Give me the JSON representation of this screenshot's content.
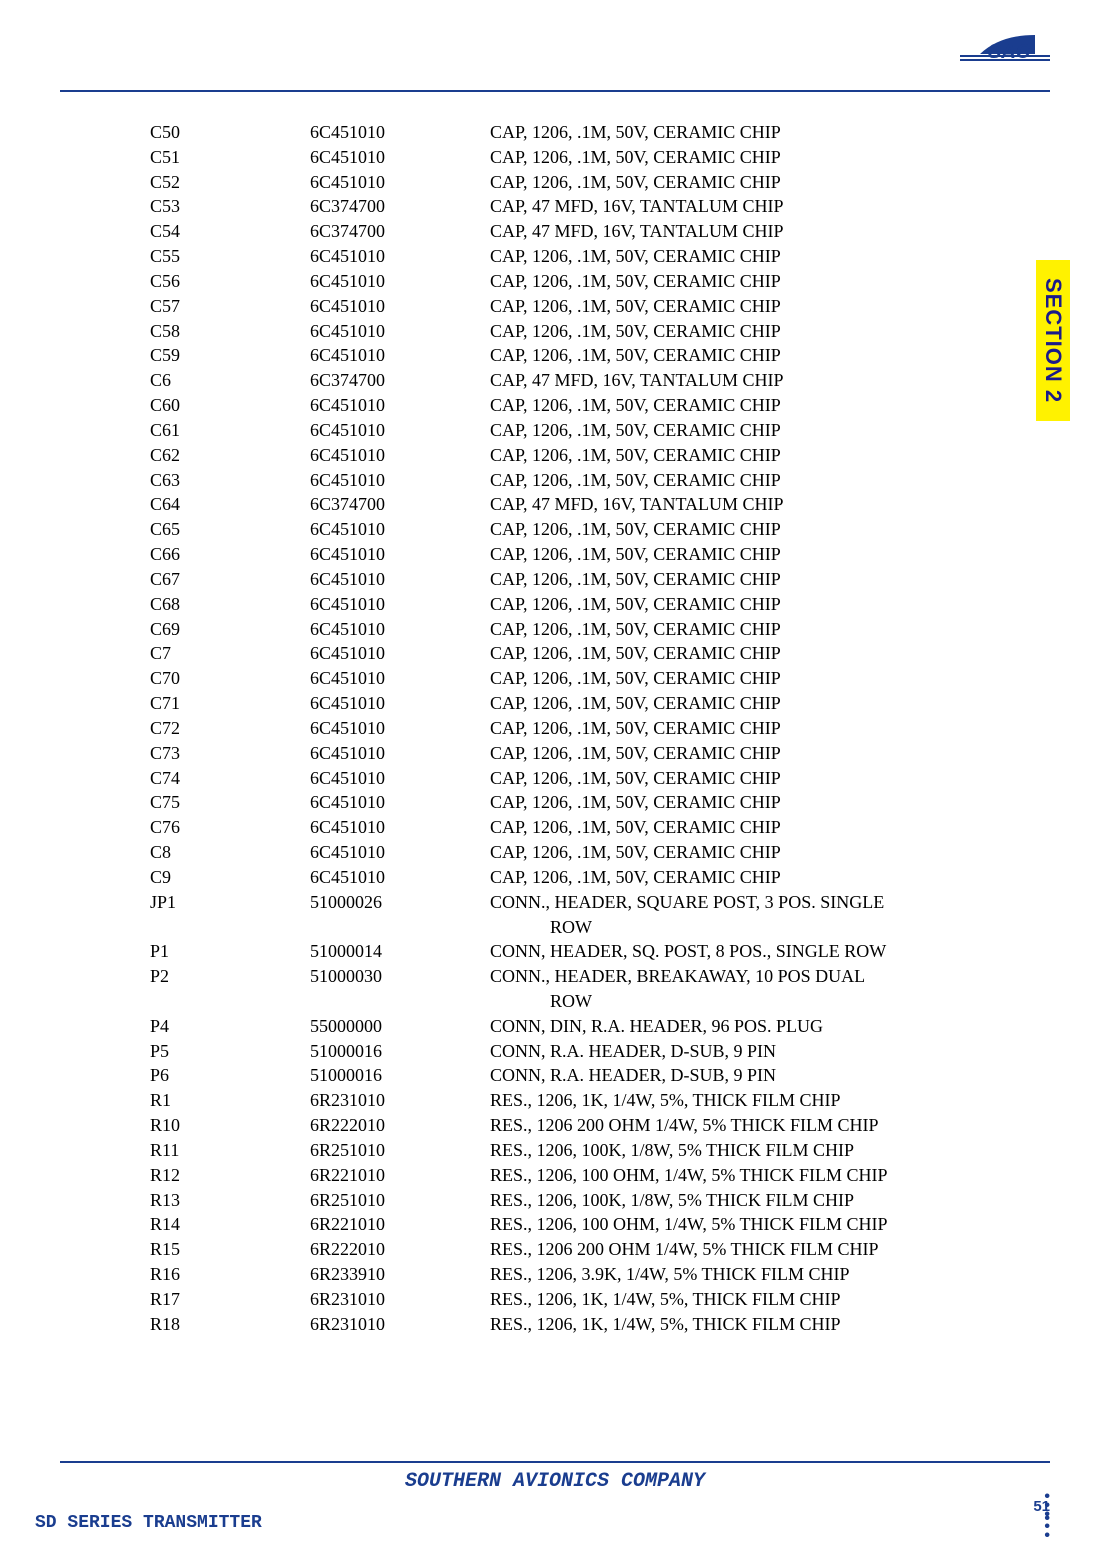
{
  "section_tab": "SECTION 2",
  "footer_center": "SOUTHERN AVIONICS COMPANY",
  "footer_left": "SD SERIES TRANSMITTER",
  "page_number": "51",
  "rows": [
    {
      "ref": "C50",
      "part": "6C451010",
      "desc": "CAP, 1206, .1M, 50V, CERAMIC CHIP"
    },
    {
      "ref": "C51",
      "part": "6C451010",
      "desc": "CAP, 1206, .1M, 50V, CERAMIC CHIP"
    },
    {
      "ref": "C52",
      "part": "6C451010",
      "desc": "CAP, 1206, .1M, 50V, CERAMIC CHIP"
    },
    {
      "ref": "C53",
      "part": "6C374700",
      "desc": "CAP, 47 MFD, 16V, TANTALUM CHIP"
    },
    {
      "ref": "C54",
      "part": "6C374700",
      "desc": "CAP, 47 MFD, 16V, TANTALUM CHIP"
    },
    {
      "ref": "C55",
      "part": "6C451010",
      "desc": "CAP, 1206, .1M, 50V, CERAMIC CHIP"
    },
    {
      "ref": "C56",
      "part": "6C451010",
      "desc": "CAP, 1206, .1M, 50V, CERAMIC CHIP"
    },
    {
      "ref": "C57",
      "part": "6C451010",
      "desc": "CAP, 1206, .1M, 50V, CERAMIC CHIP"
    },
    {
      "ref": "C58",
      "part": "6C451010",
      "desc": "CAP, 1206, .1M, 50V, CERAMIC CHIP"
    },
    {
      "ref": "C59",
      "part": "6C451010",
      "desc": "CAP, 1206, .1M, 50V, CERAMIC CHIP"
    },
    {
      "ref": "C6",
      "part": "6C374700",
      "desc": "CAP, 47 MFD, 16V, TANTALUM CHIP"
    },
    {
      "ref": "C60",
      "part": "6C451010",
      "desc": "CAP, 1206, .1M, 50V, CERAMIC CHIP"
    },
    {
      "ref": "C61",
      "part": "6C451010",
      "desc": "CAP, 1206, .1M, 50V, CERAMIC CHIP"
    },
    {
      "ref": "C62",
      "part": "6C451010",
      "desc": "CAP, 1206, .1M, 50V, CERAMIC CHIP"
    },
    {
      "ref": "C63",
      "part": "6C451010",
      "desc": "CAP, 1206, .1M, 50V, CERAMIC CHIP"
    },
    {
      "ref": "C64",
      "part": "6C374700",
      "desc": "CAP, 47 MFD, 16V, TANTALUM CHIP"
    },
    {
      "ref": "C65",
      "part": "6C451010",
      "desc": "CAP, 1206, .1M, 50V, CERAMIC CHIP"
    },
    {
      "ref": "C66",
      "part": "6C451010",
      "desc": "CAP, 1206, .1M, 50V, CERAMIC CHIP"
    },
    {
      "ref": "C67",
      "part": "6C451010",
      "desc": "CAP, 1206, .1M, 50V, CERAMIC CHIP"
    },
    {
      "ref": "C68",
      "part": "6C451010",
      "desc": "CAP, 1206, .1M, 50V, CERAMIC CHIP"
    },
    {
      "ref": "C69",
      "part": "6C451010",
      "desc": "CAP, 1206, .1M, 50V, CERAMIC CHIP"
    },
    {
      "ref": "C7",
      "part": "6C451010",
      "desc": "CAP, 1206, .1M, 50V, CERAMIC CHIP"
    },
    {
      "ref": "C70",
      "part": "6C451010",
      "desc": "CAP, 1206, .1M, 50V, CERAMIC CHIP"
    },
    {
      "ref": "C71",
      "part": "6C451010",
      "desc": "CAP, 1206, .1M, 50V, CERAMIC CHIP"
    },
    {
      "ref": "C72",
      "part": "6C451010",
      "desc": "CAP, 1206, .1M, 50V, CERAMIC CHIP"
    },
    {
      "ref": "C73",
      "part": "6C451010",
      "desc": "CAP, 1206, .1M, 50V, CERAMIC CHIP"
    },
    {
      "ref": "C74",
      "part": "6C451010",
      "desc": "CAP, 1206, .1M, 50V, CERAMIC CHIP"
    },
    {
      "ref": "C75",
      "part": "6C451010",
      "desc": "CAP, 1206, .1M, 50V, CERAMIC CHIP"
    },
    {
      "ref": "C76",
      "part": "6C451010",
      "desc": "CAP, 1206, .1M, 50V, CERAMIC CHIP"
    },
    {
      "ref": "C8",
      "part": "6C451010",
      "desc": "CAP, 1206, .1M, 50V, CERAMIC CHIP"
    },
    {
      "ref": "C9",
      "part": "6C451010",
      "desc": "CAP, 1206, .1M, 50V, CERAMIC CHIP"
    },
    {
      "ref": "JP1",
      "part": "51000026",
      "desc": "CONN., HEADER, SQUARE POST, 3 POS. SINGLE"
    },
    {
      "ref": "",
      "part": "",
      "desc": "ROW",
      "indent": true
    },
    {
      "ref": "P1",
      "part": "51000014",
      "desc": "CONN, HEADER, SQ. POST, 8 POS., SINGLE ROW"
    },
    {
      "ref": "P2",
      "part": "51000030",
      "desc": "CONN., HEADER, BREAKAWAY, 10 POS DUAL"
    },
    {
      "ref": "",
      "part": "",
      "desc": "ROW",
      "indent": true
    },
    {
      "ref": "P4",
      "part": "55000000",
      "desc": "CONN, DIN, R.A. HEADER, 96 POS. PLUG"
    },
    {
      "ref": "P5",
      "part": "51000016",
      "desc": "CONN, R.A. HEADER, D-SUB, 9 PIN"
    },
    {
      "ref": "P6",
      "part": "51000016",
      "desc": "CONN, R.A. HEADER, D-SUB, 9 PIN"
    },
    {
      "ref": "R1",
      "part": "6R231010",
      "desc": "RES., 1206, 1K, 1/4W, 5%, THICK FILM CHIP"
    },
    {
      "ref": "R10",
      "part": "6R222010",
      "desc": "RES., 1206 200 OHM 1/4W, 5% THICK FILM CHIP"
    },
    {
      "ref": "R11",
      "part": "6R251010",
      "desc": "RES., 1206, 100K, 1/8W, 5% THICK FILM CHIP"
    },
    {
      "ref": "R12",
      "part": "6R221010",
      "desc": "RES., 1206, 100 OHM, 1/4W, 5% THICK FILM CHIP"
    },
    {
      "ref": "R13",
      "part": "6R251010",
      "desc": "RES., 1206, 100K, 1/8W, 5% THICK FILM CHIP"
    },
    {
      "ref": "R14",
      "part": "6R221010",
      "desc": "RES., 1206, 100 OHM, 1/4W, 5% THICK FILM CHIP"
    },
    {
      "ref": "R15",
      "part": "6R222010",
      "desc": "RES., 1206 200 OHM 1/4W, 5% THICK FILM CHIP"
    },
    {
      "ref": "R16",
      "part": "6R233910",
      "desc": "RES., 1206, 3.9K, 1/4W, 5% THICK FILM CHIP"
    },
    {
      "ref": "R17",
      "part": "6R231010",
      "desc": "RES., 1206, 1K, 1/4W, 5%, THICK FILM CHIP"
    },
    {
      "ref": "R18",
      "part": "6R231010",
      "desc": "RES., 1206, 1K, 1/4W, 5%, THICK FILM CHIP"
    }
  ]
}
